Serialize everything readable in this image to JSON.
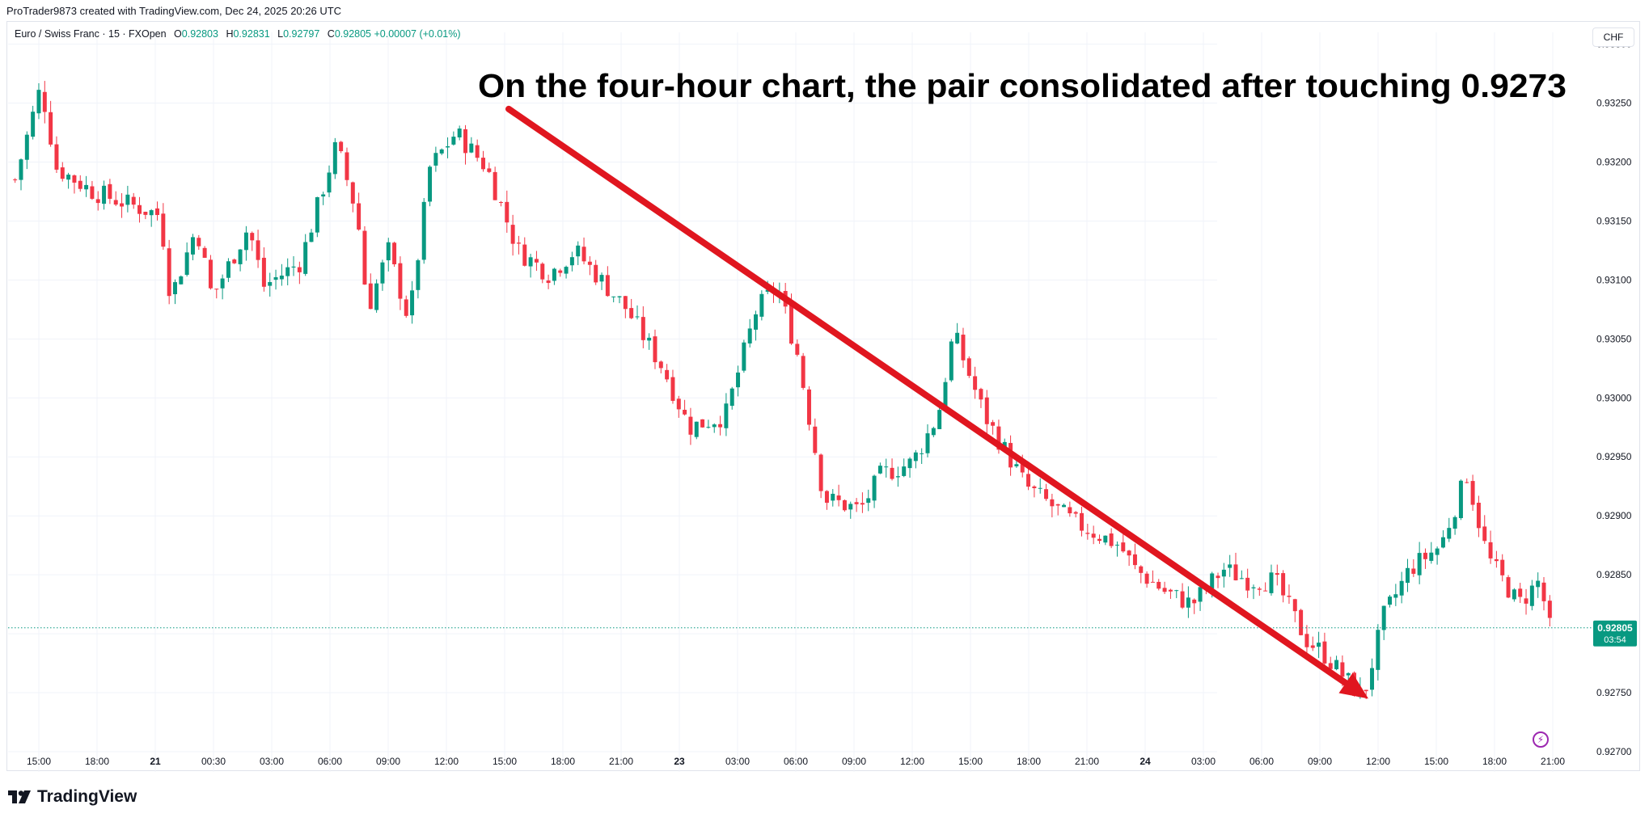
{
  "header": {
    "caption": "ProTrader9873 created with TradingView.com, Dec 24, 2025 20:26 UTC"
  },
  "legend": {
    "symbol": "Euro / Swiss Franc · 15 · FXOpen",
    "o_label": "O",
    "o_value": "0.92803",
    "h_label": "H",
    "h_value": "0.92831",
    "l_label": "L",
    "l_value": "0.92797",
    "c_label": "C",
    "c_value": "0.92805",
    "change": "+0.00007 (+0.01%)"
  },
  "currency": "CHF",
  "price_badge": {
    "price": "0.92805",
    "countdown": "03:54"
  },
  "annotation": {
    "text": "On the four-hour chart, the pair consolidated after touching 0.9273"
  },
  "footer": {
    "brand": "TradingView"
  },
  "colors": {
    "up": "#089981",
    "down": "#f23645",
    "arrow": "#e0161f",
    "badge": "#089981",
    "grid": "#f0f3fa"
  },
  "icons": {
    "logo": "tradingview-logo-icon",
    "bolt": "lightning-bolt-icon"
  },
  "chart_data": {
    "type": "candlestick",
    "symbol": "EUR/CHF",
    "interval": "15",
    "ylim": [
      0.927,
      0.9331
    ],
    "y_ticks": [
      "0.93300",
      "0.93250",
      "0.93200",
      "0.93150",
      "0.93100",
      "0.93050",
      "0.93000",
      "0.92950",
      "0.92900",
      "0.92850",
      "0.92800",
      "0.92750",
      "0.92700"
    ],
    "x_ticks": [
      {
        "label": "15:00",
        "bold": false
      },
      {
        "label": "18:00",
        "bold": false
      },
      {
        "label": "21",
        "bold": true
      },
      {
        "label": "00:30",
        "bold": false
      },
      {
        "label": "03:00",
        "bold": false
      },
      {
        "label": "06:00",
        "bold": false
      },
      {
        "label": "09:00",
        "bold": false
      },
      {
        "label": "12:00",
        "bold": false
      },
      {
        "label": "15:00",
        "bold": false
      },
      {
        "label": "18:00",
        "bold": false
      },
      {
        "label": "21:00",
        "bold": false
      },
      {
        "label": "23",
        "bold": true
      },
      {
        "label": "03:00",
        "bold": false
      },
      {
        "label": "06:00",
        "bold": false
      },
      {
        "label": "09:00",
        "bold": false
      },
      {
        "label": "12:00",
        "bold": false
      },
      {
        "label": "15:00",
        "bold": false
      },
      {
        "label": "18:00",
        "bold": false
      },
      {
        "label": "21:00",
        "bold": false
      },
      {
        "label": "24",
        "bold": true
      },
      {
        "label": "03:00",
        "bold": false
      },
      {
        "label": "06:00",
        "bold": false
      },
      {
        "label": "09:00",
        "bold": false
      },
      {
        "label": "12:00",
        "bold": false
      },
      {
        "label": "15:00",
        "bold": false
      },
      {
        "label": "18:00",
        "bold": false
      },
      {
        "label": "21:00",
        "bold": false
      }
    ],
    "candle_count": 260,
    "trend_path": [
      [
        0,
        0.93185
      ],
      [
        5,
        0.93265
      ],
      [
        8,
        0.93195
      ],
      [
        15,
        0.93175
      ],
      [
        28,
        0.93155
      ],
      [
        30,
        0.93085
      ],
      [
        35,
        0.93145
      ],
      [
        38,
        0.93085
      ],
      [
        45,
        0.93145
      ],
      [
        48,
        0.93095
      ],
      [
        55,
        0.93115
      ],
      [
        62,
        0.93215
      ],
      [
        66,
        0.93155
      ],
      [
        68,
        0.93075
      ],
      [
        72,
        0.93125
      ],
      [
        76,
        0.93065
      ],
      [
        80,
        0.93195
      ],
      [
        85,
        0.93225
      ],
      [
        91,
        0.93195
      ],
      [
        97,
        0.93125
      ],
      [
        103,
        0.93105
      ],
      [
        108,
        0.93125
      ],
      [
        112,
        0.93105
      ],
      [
        118,
        0.93075
      ],
      [
        125,
        0.93025
      ],
      [
        130,
        0.92975
      ],
      [
        137,
        0.92985
      ],
      [
        143,
        0.93075
      ],
      [
        147,
        0.93095
      ],
      [
        151,
        0.93035
      ],
      [
        156,
        0.92915
      ],
      [
        163,
        0.92905
      ],
      [
        167,
        0.92935
      ],
      [
        173,
        0.92945
      ],
      [
        178,
        0.92985
      ],
      [
        181,
        0.93055
      ],
      [
        187,
        0.92985
      ],
      [
        191,
        0.92955
      ],
      [
        195,
        0.92925
      ],
      [
        204,
        0.92895
      ],
      [
        213,
        0.92875
      ],
      [
        216,
        0.92855
      ],
      [
        222,
        0.92835
      ],
      [
        227,
        0.92825
      ],
      [
        233,
        0.92855
      ],
      [
        238,
        0.92845
      ],
      [
        243,
        0.92845
      ],
      [
        249,
        0.92795
      ],
      [
        252,
        0.92785
      ],
      [
        256,
        0.92765
      ],
      [
        260,
        0.92745
      ],
      [
        264,
        0.92815
      ],
      [
        269,
        0.92855
      ],
      [
        275,
        0.92875
      ],
      [
        280,
        0.92935
      ],
      [
        284,
        0.92865
      ],
      [
        290,
        0.92825
      ],
      [
        294,
        0.92845
      ],
      [
        296,
        0.92805
      ]
    ],
    "annotation_arrow": {
      "from": {
        "x_label": "15:00",
        "price": 0.93245
      },
      "to": {
        "x_label": "12:00",
        "price": 0.92745
      }
    },
    "last_price": 0.92805
  }
}
